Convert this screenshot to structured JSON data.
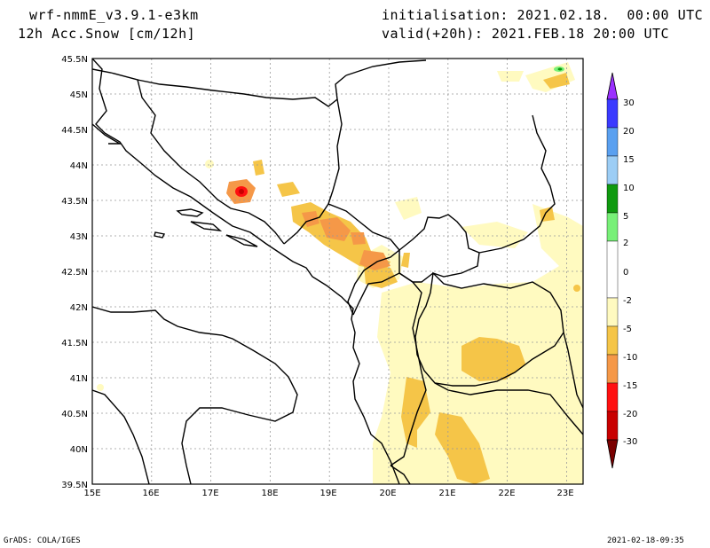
{
  "header": {
    "model": "wrf-nmmE_v3.9.1-e3km",
    "field": "12h Acc.Snow [cm/12h]",
    "init": "initialisation: 2021.02.18.  00:00 UTC",
    "valid": "valid(+20h): 2021.FEB.18 20:00 UTC"
  },
  "footer": {
    "left": "GrADS: COLA/IGES",
    "right": "2021-02-18-09:35"
  },
  "axes": {
    "lon_labels": [
      "15E",
      "16E",
      "17E",
      "18E",
      "19E",
      "20E",
      "21E",
      "22E",
      "23E"
    ],
    "lat_labels": [
      "45.5N",
      "45N",
      "44.5N",
      "44N",
      "43.5N",
      "43N",
      "42.5N",
      "42N",
      "41.5N",
      "41N",
      "40.5N",
      "40N",
      "39.5N"
    ]
  },
  "colorbar": {
    "labels": [
      "30",
      "20",
      "15",
      "10",
      "5",
      "2",
      "0",
      "-2",
      "-5",
      "-10",
      "-15",
      "-20",
      "-30"
    ],
    "colors": [
      "#9b30ff",
      "#3a3aff",
      "#5aa0f0",
      "#9ccdf5",
      "#0f9a0f",
      "#78f078",
      "#ffffff",
      "#fffac0",
      "#f5c548",
      "#f59848",
      "#ff1010",
      "#c80000",
      "#7a0000"
    ]
  },
  "map": {
    "snow_light": "#fffac0",
    "snow_medium": "#f5c548",
    "snow_heavy": "#f59848",
    "snow_extreme": "#ff1010"
  }
}
